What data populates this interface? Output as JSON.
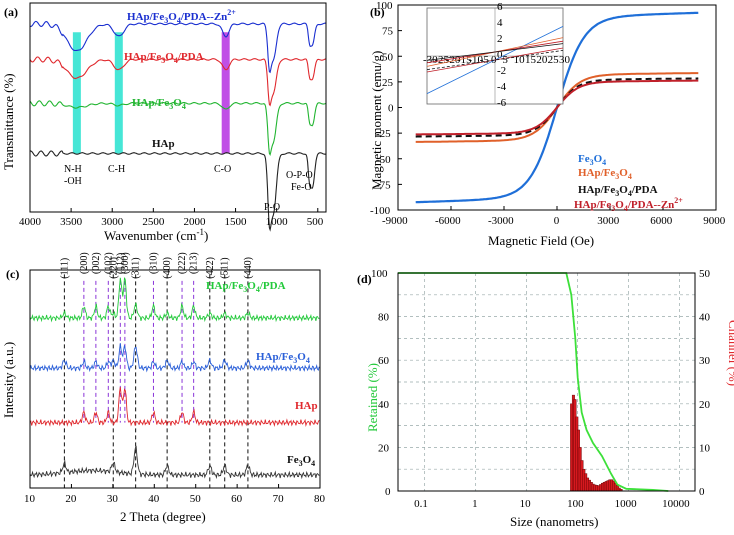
{
  "chart_data": [
    {
      "panel": "(a)",
      "type": "line",
      "xlabel": "Wavenumber (cm",
      "xlabel_sup": "-1",
      "xlabel_end": ")",
      "ylabel": "Transmittance (%)",
      "xlim": [
        4000,
        400
      ],
      "xticks": [
        "4000",
        "3500",
        "3000",
        "2500",
        "2000",
        "1500",
        "1000",
        "500"
      ],
      "xtick_values": [
        4000,
        3500,
        3000,
        2500,
        2000,
        1500,
        1000,
        500
      ],
      "series": [
        {
          "name": "HAp/Fe3O4/PDA--Zn2+",
          "color": "#1a2fd0",
          "offset": 0.9,
          "amp": [
            0.13,
            0.06,
            0.06,
            0.17,
            0.16,
            0.1
          ]
        },
        {
          "name": "HAp/Fe3O4/PDA",
          "color": "#e0282d",
          "offset": 0.73,
          "amp": [
            0.09,
            0.05,
            0.05,
            0.16,
            0.15,
            0.09
          ]
        },
        {
          "name": "HAp/Fe3O4",
          "color": "#22b531",
          "offset": 0.52,
          "amp": [
            0.02,
            0.01,
            0.03,
            0.18,
            0.17,
            0.1
          ]
        },
        {
          "name": "HAp",
          "color": "#222222",
          "offset": 0.28,
          "amp": [
            0.0,
            0.0,
            0.0,
            0.28,
            0.25,
            0.16
          ]
        }
      ],
      "labels": {
        "s1": "HAp/Fe",
        "s1b": "3",
        "s1c": "O",
        "s1d": "4",
        "s1e": "/PDA--Zn",
        "s1f": "2+",
        "s2": "HAp/Fe",
        "s2b": "3",
        "s2c": "O",
        "s2d": "4",
        "s2e": "/PDA",
        "s3": "HAp/Fe",
        "s3b": "3",
        "s3c": "O",
        "s3d": "4",
        "s4": "HAp"
      },
      "annotations": {
        "nh": "N-H",
        "oh": "-OH",
        "ch": "C-H",
        "co": "C-O",
        "po": "P-O",
        "opo": "O-P-O",
        "feo": "Fe-O"
      },
      "bands": [
        {
          "x": 3430,
          "color": "#46e6d6"
        },
        {
          "x": 2920,
          "color": "#46e6d6"
        },
        {
          "x": 1620,
          "color": "#c04fe6"
        }
      ]
    },
    {
      "panel": "(b)",
      "type": "line",
      "xlabel": "Magnetic Field (Oe)",
      "ylabel": "Magnetic moment (emu/g)",
      "xlim": [
        -9000,
        9000
      ],
      "ylim": [
        -100,
        100
      ],
      "xticks": [
        "-9000",
        "-6000",
        "-3000",
        "0",
        "3000",
        "6000",
        "9000"
      ],
      "xtick_values": [
        -9000,
        -6000,
        -3000,
        0,
        3000,
        6000,
        9000
      ],
      "yticks": [
        "-100",
        "-75",
        "-50",
        "-25",
        "0",
        "25",
        "50",
        "75",
        "100"
      ],
      "ytick_values": [
        -100,
        -75,
        -50,
        -25,
        0,
        25,
        50,
        75,
        100
      ],
      "series": [
        {
          "name": "Fe3O4",
          "color": "#1f6fd8",
          "ms": 88,
          "k": 1500,
          "dash": false
        },
        {
          "name": "HAp/Fe3O4",
          "color": "#e0602a",
          "ms": 32,
          "k": 1300,
          "dash": false
        },
        {
          "name": "HAp/Fe3O4/PDA",
          "color": "#111111",
          "ms": 27,
          "k": 1200,
          "dash": true
        },
        {
          "name": "HAp/Fe3O4/PDA--Zn2+",
          "color": "#c0202a",
          "ms": 25,
          "k": 1200,
          "dash": false
        }
      ],
      "legend": {
        "l1": "Fe",
        "l1b": "3",
        "l1c": "O",
        "l1d": "4",
        "l2": "HAp/Fe",
        "l2b": "3",
        "l2c": "O",
        "l2d": "4",
        "l3": "HAp/Fe",
        "l3b": "3",
        "l3c": "O",
        "l3d": "4",
        "l3e": "/PDA",
        "l4": "HAp/Fe",
        "l4b": "3",
        "l4c": "O",
        "l4d": "4",
        "l4e": "/PDA--Zn",
        "l4f": "2+"
      },
      "inset": {
        "xlim": [
          -30,
          30
        ],
        "ylim": [
          -6,
          6
        ],
        "xticks": [
          "-30",
          "-25",
          "-20",
          "-15",
          "-10",
          "-5",
          "0",
          "5",
          "10",
          "15",
          "20",
          "25",
          "30"
        ],
        "yticks": [
          "-6",
          "-4",
          "-2",
          "0",
          "2",
          "4",
          "6"
        ]
      }
    },
    {
      "panel": "(c)",
      "type": "line",
      "xlabel": "2 Theta (degree)",
      "ylabel": "Intensity (a.u.)",
      "xlim": [
        10,
        80
      ],
      "xticks": [
        "10",
        "20",
        "30",
        "40",
        "50",
        "60",
        "70",
        "80"
      ],
      "xtick_values": [
        10,
        20,
        30,
        40,
        50,
        60,
        70,
        80
      ],
      "series": [
        {
          "name": "HAp/Fe3O4/PDA",
          "color": "#22c93a",
          "base": 0.78
        },
        {
          "name": "HAp/Fe3O4",
          "color": "#2a5fd8",
          "base": 0.55
        },
        {
          "name": "HAp",
          "color": "#e0282d",
          "base": 0.3
        },
        {
          "name": "Fe3O4",
          "color": "#333333",
          "base": 0.06
        }
      ],
      "labels": {
        "s1": "HAp/Fe",
        "s1b": "3",
        "s1c": "O",
        "s1d": "4",
        "s1e": "/PDA",
        "s2": "HAp/Fe",
        "s2b": "3",
        "s2c": "O",
        "s2d": "4",
        "s3": "HAp",
        "s4": "Fe",
        "s4b": "3",
        "s4c": "O",
        "s4d": "4"
      },
      "fe_peaks": [
        {
          "x": 18.3,
          "hkl": "(111)"
        },
        {
          "x": 30.1,
          "hkl": "(220)"
        },
        {
          "x": 35.5,
          "hkl": "(311)"
        },
        {
          "x": 43.1,
          "hkl": "(400)"
        },
        {
          "x": 53.4,
          "hkl": "(422)"
        },
        {
          "x": 57.0,
          "hkl": "(511)"
        },
        {
          "x": 62.6,
          "hkl": "(440)"
        }
      ],
      "hap_peaks": [
        {
          "x": 25.9,
          "hkl": "(002)"
        },
        {
          "x": 23.0,
          "hkl": "(200)"
        },
        {
          "x": 28.9,
          "hkl": "(102)"
        },
        {
          "x": 31.8,
          "hkl": "(112)"
        },
        {
          "x": 32.9,
          "hkl": "(300)"
        },
        {
          "x": 39.8,
          "hkl": "(310)"
        },
        {
          "x": 46.7,
          "hkl": "(222)"
        },
        {
          "x": 49.5,
          "hkl": "(213)"
        }
      ]
    },
    {
      "panel": "(d)",
      "type": "bar",
      "xlabel": "Size (nanometrs)",
      "ylabel": "Retained (%)",
      "ylabel2": "Channel (%)",
      "xlim_log": [
        0.03,
        20000
      ],
      "ylim": [
        0,
        100
      ],
      "y2lim": [
        0,
        50
      ],
      "xticks": [
        "0.1",
        "1",
        "10",
        "100",
        "1000",
        "10000"
      ],
      "xtick_values": [
        0.1,
        1,
        10,
        100,
        1000,
        10000
      ],
      "yticks": [
        "0",
        "20",
        "40",
        "60",
        "80",
        "100"
      ],
      "y2ticks": [
        "0",
        "10",
        "20",
        "30",
        "40",
        "50"
      ],
      "bars": [
        {
          "x": 72,
          "v": 20
        },
        {
          "x": 78,
          "v": 22
        },
        {
          "x": 84,
          "v": 21
        },
        {
          "x": 91,
          "v": 17
        },
        {
          "x": 98,
          "v": 14
        },
        {
          "x": 106,
          "v": 10
        },
        {
          "x": 115,
          "v": 7
        },
        {
          "x": 125,
          "v": 5
        },
        {
          "x": 136,
          "v": 4
        },
        {
          "x": 148,
          "v": 3
        },
        {
          "x": 161,
          "v": 2.5
        },
        {
          "x": 175,
          "v": 2
        },
        {
          "x": 190,
          "v": 1.6
        },
        {
          "x": 207,
          "v": 1.4
        },
        {
          "x": 225,
          "v": 1.3
        },
        {
          "x": 245,
          "v": 1.2
        },
        {
          "x": 266,
          "v": 1.5
        },
        {
          "x": 290,
          "v": 1.8
        },
        {
          "x": 315,
          "v": 2
        },
        {
          "x": 343,
          "v": 2.2
        },
        {
          "x": 373,
          "v": 2.4
        },
        {
          "x": 405,
          "v": 2.6
        },
        {
          "x": 441,
          "v": 2.6
        },
        {
          "x": 480,
          "v": 2.3
        },
        {
          "x": 522,
          "v": 1.8
        },
        {
          "x": 568,
          "v": 1.2
        },
        {
          "x": 618,
          "v": 0.7
        },
        {
          "x": 672,
          "v": 0.4
        }
      ],
      "retained": [
        [
          0.03,
          100
        ],
        [
          1,
          100
        ],
        [
          60,
          100
        ],
        [
          75,
          90
        ],
        [
          90,
          70
        ],
        [
          100,
          52
        ],
        [
          120,
          36
        ],
        [
          150,
          28
        ],
        [
          200,
          22
        ],
        [
          300,
          16
        ],
        [
          450,
          8
        ],
        [
          600,
          3
        ],
        [
          900,
          1
        ],
        [
          3000,
          0.5
        ],
        [
          6000,
          0
        ]
      ]
    }
  ]
}
